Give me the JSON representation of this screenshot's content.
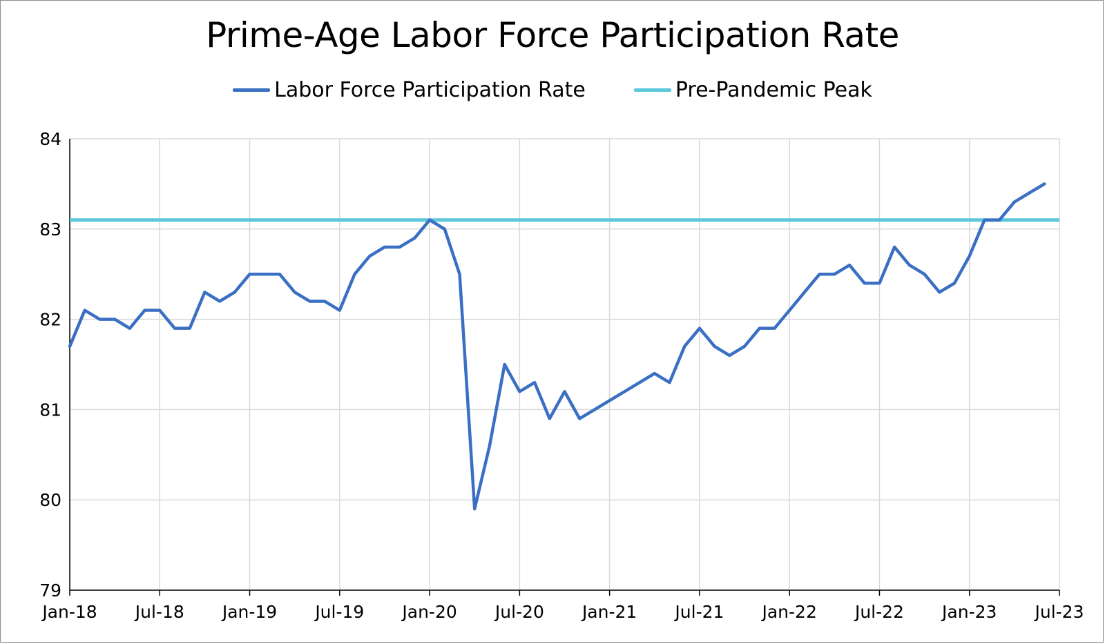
{
  "chart_data": {
    "type": "line",
    "title": "Prime-Age Labor Force Participation Rate",
    "xlabel": "",
    "ylabel": "",
    "ylim": [
      79,
      84
    ],
    "yticks": [
      "79",
      "80",
      "81",
      "82",
      "83",
      "84"
    ],
    "xticks": [
      "Jan-18",
      "Jul-18",
      "Jan-19",
      "Jul-19",
      "Jan-20",
      "Jul-20",
      "Jan-21",
      "Jul-21",
      "Jan-22",
      "Jul-22",
      "Jan-23",
      "Jul-23"
    ],
    "x_start": "Jan-18",
    "grid": true,
    "legend_position": "top",
    "series": [
      {
        "name": "Labor Force Participation Rate",
        "color": "#3a6fc4",
        "values": [
          81.7,
          82.1,
          82.0,
          82.0,
          81.9,
          82.1,
          82.1,
          81.9,
          81.9,
          82.3,
          82.2,
          82.3,
          82.5,
          82.5,
          82.5,
          82.3,
          82.2,
          82.2,
          82.1,
          82.5,
          82.7,
          82.8,
          82.8,
          82.9,
          83.1,
          83.0,
          82.5,
          79.9,
          80.6,
          81.5,
          81.2,
          81.3,
          80.9,
          81.2,
          80.9,
          81.0,
          81.1,
          81.2,
          81.3,
          81.4,
          81.3,
          81.7,
          81.9,
          81.7,
          81.6,
          81.7,
          81.9,
          81.9,
          82.1,
          82.3,
          82.5,
          82.5,
          82.6,
          82.4,
          82.4,
          82.8,
          82.6,
          82.5,
          82.3,
          82.4,
          82.7,
          83.1,
          83.1,
          83.3,
          83.4,
          83.5
        ]
      },
      {
        "name": "Pre-Pandemic Peak",
        "color": "#5bc8dc",
        "constant": 83.1
      }
    ]
  }
}
